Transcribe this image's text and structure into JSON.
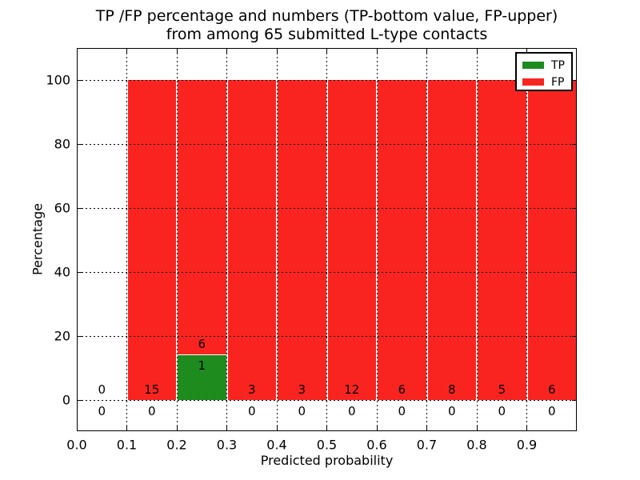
{
  "chart_data": {
    "type": "bar",
    "stacked": true,
    "title_lines": [
      "TP /FP percentage and numbers (TP-bottom value, FP-upper)",
      "from among 65 submitted L-type contacts"
    ],
    "xlabel": "Predicted probability",
    "ylabel": "Percentage",
    "xlim": [
      0.0,
      1.0
    ],
    "ylim": [
      -10,
      110
    ],
    "xticks": [
      "0.0",
      "0.1",
      "0.2",
      "0.3",
      "0.4",
      "0.5",
      "0.6",
      "0.7",
      "0.8",
      "0.9"
    ],
    "yticks": [
      0,
      20,
      40,
      60,
      80,
      100
    ],
    "grid_style": "dotted",
    "legend_position": "upper-right",
    "legend": [
      {
        "label": "TP",
        "color": "#1e8b1e"
      },
      {
        "label": "FP",
        "color": "#f92420"
      }
    ],
    "bins": [
      {
        "range": [
          0.0,
          0.1
        ],
        "tp": 0,
        "fp": 0,
        "tp_pct": 0,
        "fp_pct": 0
      },
      {
        "range": [
          0.1,
          0.2
        ],
        "tp": 0,
        "fp": 15,
        "tp_pct": 0,
        "fp_pct": 100
      },
      {
        "range": [
          0.2,
          0.3
        ],
        "tp": 1,
        "fp": 6,
        "tp_pct": 14.3,
        "fp_pct": 85.7
      },
      {
        "range": [
          0.3,
          0.4
        ],
        "tp": 0,
        "fp": 3,
        "tp_pct": 0,
        "fp_pct": 100
      },
      {
        "range": [
          0.4,
          0.5
        ],
        "tp": 0,
        "fp": 3,
        "tp_pct": 0,
        "fp_pct": 100
      },
      {
        "range": [
          0.5,
          0.6
        ],
        "tp": 0,
        "fp": 12,
        "tp_pct": 0,
        "fp_pct": 100
      },
      {
        "range": [
          0.6,
          0.7
        ],
        "tp": 0,
        "fp": 6,
        "tp_pct": 0,
        "fp_pct": 100
      },
      {
        "range": [
          0.7,
          0.8
        ],
        "tp": 0,
        "fp": 8,
        "tp_pct": 0,
        "fp_pct": 100
      },
      {
        "range": [
          0.8,
          0.9
        ],
        "tp": 0,
        "fp": 5,
        "tp_pct": 0,
        "fp_pct": 100
      },
      {
        "range": [
          0.9,
          1.0
        ],
        "tp": 0,
        "fp": 6,
        "tp_pct": 0,
        "fp_pct": 100
      }
    ],
    "axis_color": "#000000",
    "background": "#ffffff"
  }
}
